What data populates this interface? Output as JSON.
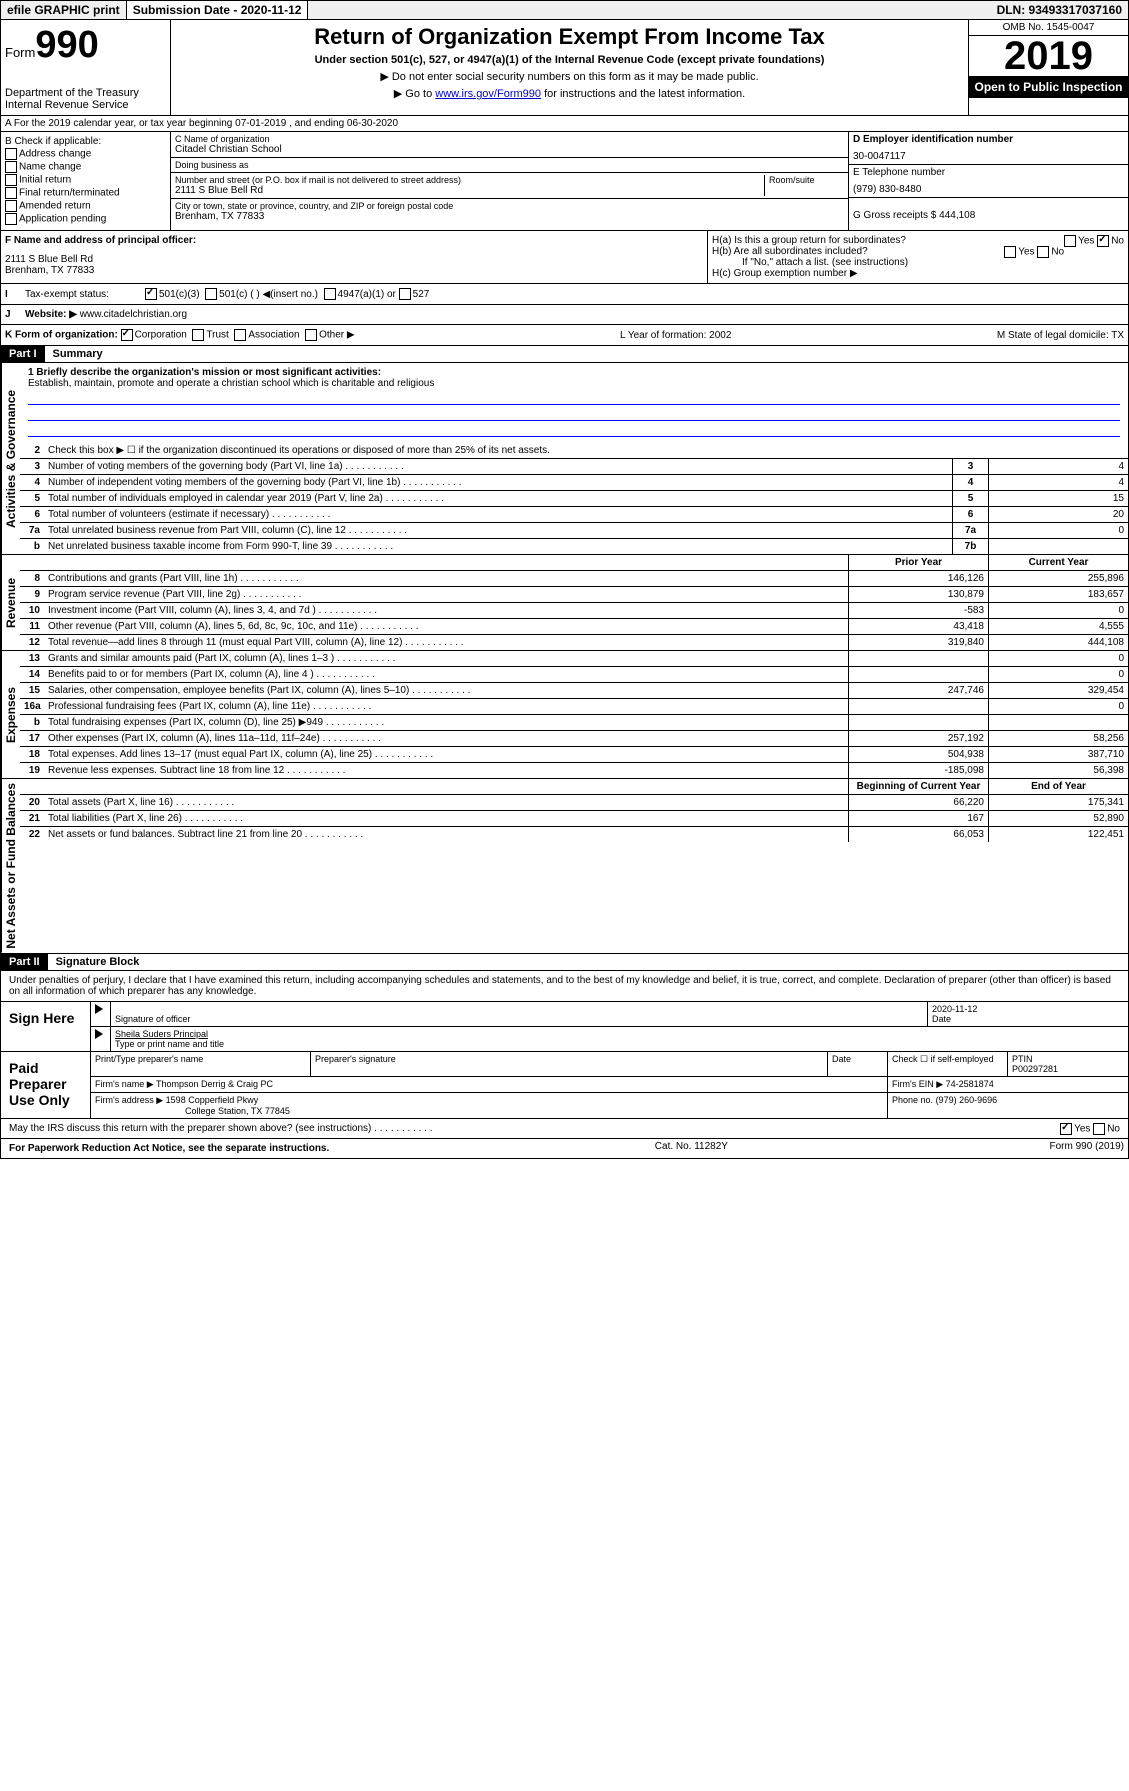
{
  "topbar": {
    "efile": "efile GRAPHIC print",
    "submission": "Submission Date - 2020-11-12",
    "dln": "DLN: 93493317037160"
  },
  "header": {
    "form_label": "Form",
    "form_num": "990",
    "dept": "Department of the Treasury Internal Revenue Service",
    "title": "Return of Organization Exempt From Income Tax",
    "subtitle": "Under section 501(c), 527, or 4947(a)(1) of the Internal Revenue Code (except private foundations)",
    "note1": "▶ Do not enter social security numbers on this form as it may be made public.",
    "note2_pre": "▶ Go to ",
    "note2_link": "www.irs.gov/Form990",
    "note2_post": " for instructions and the latest information.",
    "omb": "OMB No. 1545-0047",
    "year": "2019",
    "open": "Open to Public Inspection"
  },
  "row_a": "A   For the 2019 calendar year, or tax year beginning 07-01-2019    , and ending 06-30-2020",
  "col_b": {
    "label": "B Check if applicable:",
    "opts": [
      "Address change",
      "Name change",
      "Initial return",
      "Final return/terminated",
      "Amended return",
      "Application pending"
    ]
  },
  "col_c": {
    "name_lbl": "C Name of organization",
    "name": "Citadel Christian School",
    "dba_lbl": "Doing business as",
    "dba": "",
    "addr_lbl": "Number and street (or P.O. box if mail is not delivered to street address)",
    "room_lbl": "Room/suite",
    "addr": "2111 S Blue Bell Rd",
    "city_lbl": "City or town, state or province, country, and ZIP or foreign postal code",
    "city": "Brenham, TX  77833",
    "officer_lbl": "F Name and address of principal officer:",
    "officer_addr1": "2111 S Blue Bell Rd",
    "officer_addr2": "Brenham, TX  77833"
  },
  "col_d": {
    "ein_lbl": "D Employer identification number",
    "ein": "30-0047117",
    "tel_lbl": "E Telephone number",
    "tel": "(979) 830-8480",
    "gross_lbl": "G Gross receipts $ 444,108"
  },
  "h": {
    "a": "H(a)  Is this a group return for subordinates?",
    "b": "H(b)  Are all subordinates included?",
    "b_note": "If \"No,\" attach a list. (see instructions)",
    "c": "H(c)  Group exemption number ▶"
  },
  "tax_status": {
    "label": "Tax-exempt status:",
    "opt1": "501(c)(3)",
    "opt2": "501(c) (   ) ◀(insert no.)",
    "opt3": "4947(a)(1) or",
    "opt4": "527"
  },
  "website": {
    "label": "Website: ▶",
    "val": "www.citadelchristian.org"
  },
  "k_row": {
    "k": "K Form of organization:",
    "opts": [
      "Corporation",
      "Trust",
      "Association",
      "Other ▶"
    ],
    "l": "L Year of formation: 2002",
    "m": "M State of legal domicile: TX"
  },
  "part1": {
    "header": "Part I",
    "title": "Summary",
    "vlabel_gov": "Activities & Governance",
    "vlabel_rev": "Revenue",
    "vlabel_exp": "Expenses",
    "vlabel_net": "Net Assets or Fund Balances",
    "mission_lbl": "1  Briefly describe the organization's mission or most significant activities:",
    "mission": "Establish, maintain, promote and operate a christian school which is charitable and religious",
    "line2": "Check this box ▶ ☐  if the organization discontinued its operations or disposed of more than 25% of its net assets.",
    "lines_gov": [
      {
        "n": "3",
        "t": "Number of voting members of the governing body (Part VI, line 1a)",
        "b": "3",
        "v": "4"
      },
      {
        "n": "4",
        "t": "Number of independent voting members of the governing body (Part VI, line 1b)",
        "b": "4",
        "v": "4"
      },
      {
        "n": "5",
        "t": "Total number of individuals employed in calendar year 2019 (Part V, line 2a)",
        "b": "5",
        "v": "15"
      },
      {
        "n": "6",
        "t": "Total number of volunteers (estimate if necessary)",
        "b": "6",
        "v": "20"
      },
      {
        "n": "7a",
        "t": "Total unrelated business revenue from Part VIII, column (C), line 12",
        "b": "7a",
        "v": "0"
      },
      {
        "n": "b",
        "t": "Net unrelated business taxable income from Form 990-T, line 39",
        "b": "7b",
        "v": ""
      }
    ],
    "col_hdr_prior": "Prior Year",
    "col_hdr_curr": "Current Year",
    "lines_rev": [
      {
        "n": "8",
        "t": "Contributions and grants (Part VIII, line 1h)",
        "p": "146,126",
        "c": "255,896"
      },
      {
        "n": "9",
        "t": "Program service revenue (Part VIII, line 2g)",
        "p": "130,879",
        "c": "183,657"
      },
      {
        "n": "10",
        "t": "Investment income (Part VIII, column (A), lines 3, 4, and 7d )",
        "p": "-583",
        "c": "0"
      },
      {
        "n": "11",
        "t": "Other revenue (Part VIII, column (A), lines 5, 6d, 8c, 9c, 10c, and 11e)",
        "p": "43,418",
        "c": "4,555"
      },
      {
        "n": "12",
        "t": "Total revenue—add lines 8 through 11 (must equal Part VIII, column (A), line 12)",
        "p": "319,840",
        "c": "444,108"
      }
    ],
    "lines_exp": [
      {
        "n": "13",
        "t": "Grants and similar amounts paid (Part IX, column (A), lines 1–3 )",
        "p": "",
        "c": "0"
      },
      {
        "n": "14",
        "t": "Benefits paid to or for members (Part IX, column (A), line 4 )",
        "p": "",
        "c": "0"
      },
      {
        "n": "15",
        "t": "Salaries, other compensation, employee benefits (Part IX, column (A), lines 5–10)",
        "p": "247,746",
        "c": "329,454"
      },
      {
        "n": "16a",
        "t": "Professional fundraising fees (Part IX, column (A), line 11e)",
        "p": "",
        "c": "0"
      },
      {
        "n": "b",
        "t": "Total fundraising expenses (Part IX, column (D), line 25) ▶949",
        "p": "",
        "c": ""
      },
      {
        "n": "17",
        "t": "Other expenses (Part IX, column (A), lines 11a–11d, 11f–24e)",
        "p": "257,192",
        "c": "58,256"
      },
      {
        "n": "18",
        "t": "Total expenses. Add lines 13–17 (must equal Part IX, column (A), line 25)",
        "p": "504,938",
        "c": "387,710"
      },
      {
        "n": "19",
        "t": "Revenue less expenses. Subtract line 18 from line 12",
        "p": "-185,098",
        "c": "56,398"
      }
    ],
    "col_hdr_begin": "Beginning of Current Year",
    "col_hdr_end": "End of Year",
    "lines_net": [
      {
        "n": "20",
        "t": "Total assets (Part X, line 16)",
        "p": "66,220",
        "c": "175,341"
      },
      {
        "n": "21",
        "t": "Total liabilities (Part X, line 26)",
        "p": "167",
        "c": "52,890"
      },
      {
        "n": "22",
        "t": "Net assets or fund balances. Subtract line 21 from line 20",
        "p": "66,053",
        "c": "122,451"
      }
    ]
  },
  "part2": {
    "header": "Part II",
    "title": "Signature Block",
    "perjury": "Under penalties of perjury, I declare that I have examined this return, including accompanying schedules and statements, and to the best of my knowledge and belief, it is true, correct, and complete. Declaration of preparer (other than officer) is based on all information of which preparer has any knowledge.",
    "sign_here": "Sign Here",
    "sig_officer": "Signature of officer",
    "sig_date": "2020-11-12",
    "date_lbl": "Date",
    "officer_name": "Sheila Suders Principal",
    "officer_type": "Type or print name and title",
    "paid_prep": "Paid Preparer Use Only",
    "prep_name_lbl": "Print/Type preparer's name",
    "prep_sig_lbl": "Preparer's signature",
    "check_lbl": "Check ☐ if self-employed",
    "ptin_lbl": "PTIN",
    "ptin": "P00297281",
    "firm_name_lbl": "Firm's name    ▶",
    "firm_name": "Thompson Derrig & Craig PC",
    "firm_ein_lbl": "Firm's EIN ▶",
    "firm_ein": "74-2581874",
    "firm_addr_lbl": "Firm's address ▶",
    "firm_addr1": "1598 Copperfield Pkwy",
    "firm_addr2": "College Station, TX  77845",
    "phone_lbl": "Phone no.",
    "phone": "(979) 260-9696",
    "discuss": "May the IRS discuss this return with the preparer shown above? (see instructions)"
  },
  "footer": {
    "paperwork": "For Paperwork Reduction Act Notice, see the separate instructions.",
    "cat": "Cat. No. 11282Y",
    "form": "Form 990 (2019)"
  }
}
